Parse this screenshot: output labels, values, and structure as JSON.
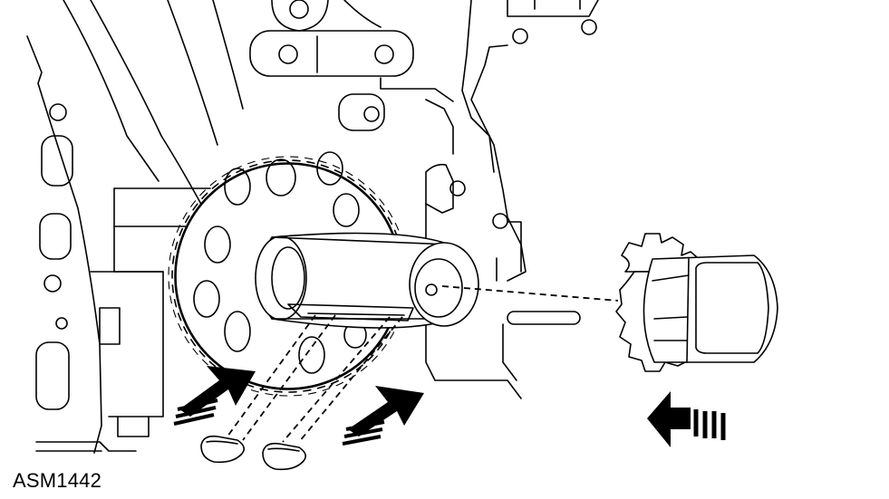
{
  "figure": {
    "reference_code": "ASM1442"
  },
  "colors": {
    "line": "#000000",
    "background": "#ffffff"
  },
  "icons": [
    "installation-arrow-icon",
    "woodruff-key-icon"
  ]
}
